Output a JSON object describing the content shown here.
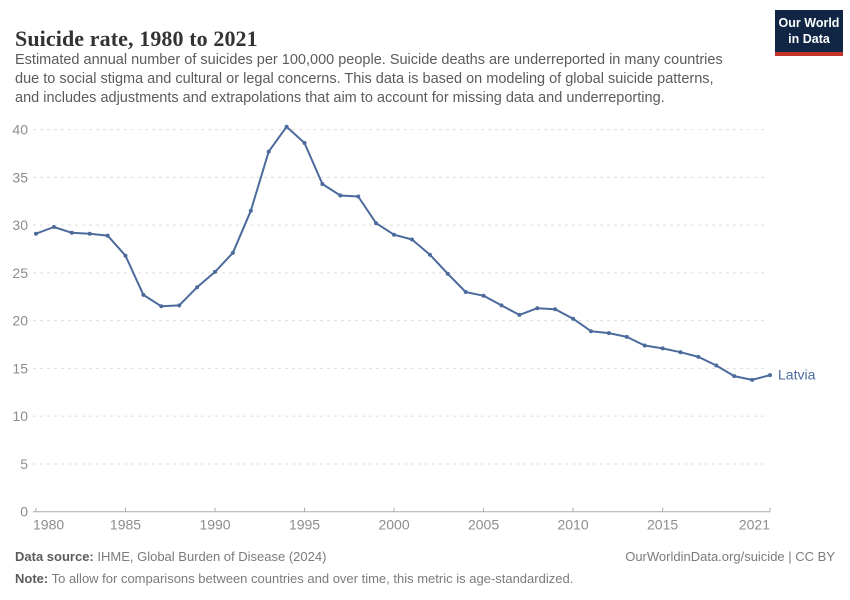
{
  "header": {
    "title": "Suicide rate, 1980 to 2021",
    "subtitle_lines": [
      "Estimated annual number of suicides per 100,000 people. Suicide deaths are underreported in many countries",
      "due to social stigma and cultural or legal concerns. This data is based on modeling of global suicide patterns,",
      "and includes adjustments and extrapolations that aim to account for missing data and underreporting."
    ],
    "logo": {
      "line1": "Our World",
      "line2": "in Data"
    }
  },
  "chart_data": {
    "type": "line",
    "title": "Suicide rate, 1980 to 2021",
    "xlabel": "",
    "ylabel": "",
    "xlim": [
      1980,
      2021
    ],
    "ylim": [
      0,
      40
    ],
    "yticks": [
      0,
      5,
      10,
      15,
      20,
      25,
      30,
      35,
      40
    ],
    "xticks": [
      1980,
      1985,
      1990,
      1995,
      2000,
      2005,
      2010,
      2015,
      2021
    ],
    "grid": "horizontal-dashed",
    "legend_position": "end-of-line-label",
    "series": [
      {
        "name": "Latvia",
        "color": "#4C6A9C",
        "x": [
          1980,
          1981,
          1982,
          1983,
          1984,
          1985,
          1986,
          1987,
          1988,
          1989,
          1990,
          1991,
          1992,
          1993,
          1994,
          1995,
          1996,
          1997,
          1998,
          1999,
          2000,
          2001,
          2002,
          2003,
          2004,
          2005,
          2006,
          2007,
          2008,
          2009,
          2010,
          2011,
          2012,
          2013,
          2014,
          2015,
          2016,
          2017,
          2018,
          2019,
          2020,
          2021
        ],
        "values": [
          29.1,
          29.8,
          29.2,
          29.1,
          28.9,
          26.8,
          22.7,
          21.5,
          21.6,
          23.5,
          25.1,
          27.1,
          31.5,
          37.7,
          40.3,
          38.6,
          34.3,
          33.1,
          33.0,
          30.2,
          29.0,
          28.5,
          26.9,
          24.9,
          23.0,
          22.6,
          21.6,
          20.6,
          21.3,
          21.2,
          20.2,
          18.9,
          18.7,
          18.3,
          17.4,
          17.1,
          16.7,
          16.2,
          15.3,
          14.2,
          13.8,
          14.3
        ]
      }
    ]
  },
  "footer": {
    "data_source_label": "Data source:",
    "data_source_text": " IHME, Global Burden of Disease (2024)",
    "citation": "OurWorldinData.org/suicide | CC BY",
    "note_label": "Note:",
    "note_text": " To allow for comparisons between countries and over time, this metric is age-standardized."
  }
}
